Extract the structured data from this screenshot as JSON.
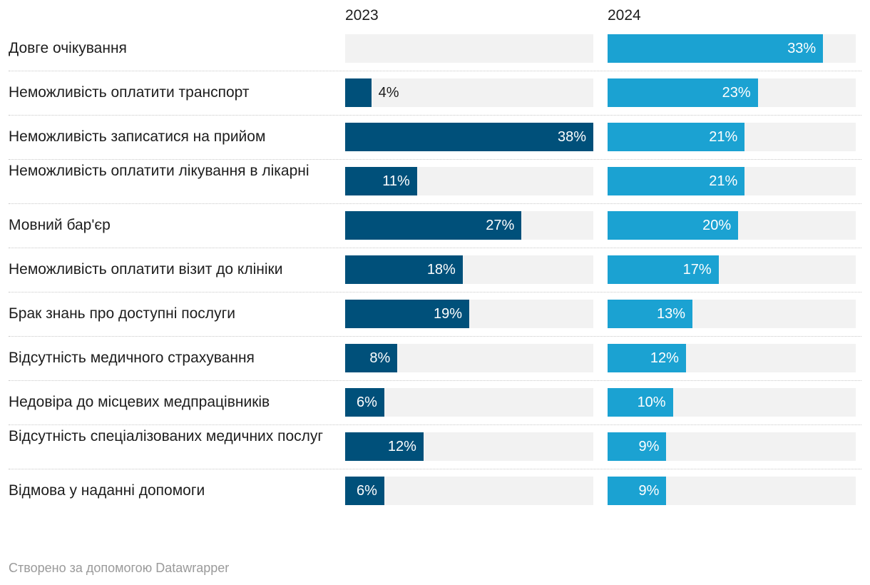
{
  "chart_data": {
    "type": "bar",
    "orientation": "horizontal",
    "categories": [
      "Довге очікування",
      "Неможливість оплатити транспорт",
      "Неможливість записатися на прийом",
      "Неможливість оплатити лікування в лікарні",
      "Мовний бар'єр",
      "Неможливість оплатити візит до клініки",
      "Брак знань про доступні послуги",
      "Відсутність медичного страхування",
      "Недовіра до місцевих медпрацівників",
      "Відсутність спеціалізованих медичних послуг",
      "Відмова у наданні допомоги"
    ],
    "series": [
      {
        "name": "2023",
        "values": [
          null,
          4,
          38,
          11,
          27,
          18,
          19,
          8,
          6,
          12,
          6
        ],
        "color": "#00507a"
      },
      {
        "name": "2024",
        "values": [
          33,
          23,
          21,
          21,
          20,
          17,
          13,
          12,
          10,
          9,
          9
        ],
        "color": "#1ba2d2"
      }
    ],
    "value_suffix": "%",
    "xlim": [
      0,
      38
    ],
    "background_track_color": "#f2f2f2",
    "grid": false
  },
  "footer": "Створено за допомогою Datawrapper"
}
